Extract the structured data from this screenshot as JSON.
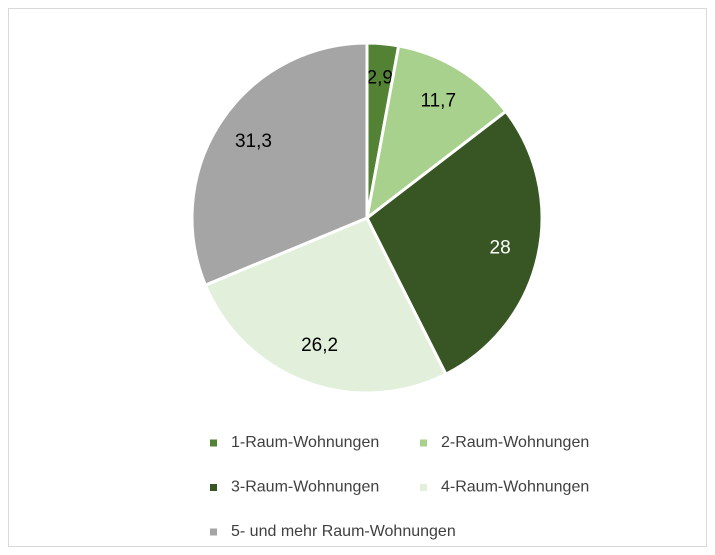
{
  "chart_data": {
    "type": "pie",
    "categories": [
      "1-Raum-Wohnungen",
      "2-Raum-Wohnungen",
      "3-Raum-Wohnungen",
      "4-Raum-Wohnungen",
      "5- und mehr Raum-Wohnungen"
    ],
    "values": [
      2.9,
      11.7,
      28,
      26.2,
      31.3
    ],
    "value_labels": [
      "2,9",
      "11,7",
      "28",
      "26,2",
      "31,3"
    ],
    "colors": [
      "#548235",
      "#a9d18e",
      "#375623",
      "#e2efda",
      "#a5a5a5"
    ],
    "label_colors": [
      "#000000",
      "#000000",
      "#ffffff",
      "#000000",
      "#000000"
    ],
    "legend": "bottom"
  }
}
